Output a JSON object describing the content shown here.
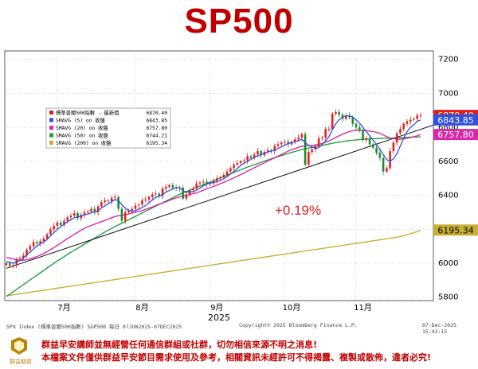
{
  "title": "SP500",
  "footer": {
    "source": "SPX Index (標準普爾500指數) S&P500 每日 07JUN2025-07DEC2025",
    "copyright": "Copyright© 2025 Bloomberg Finance L.P.",
    "date": "07-Dec-2025 15:43:15",
    "logo_text": "群益期貨",
    "disclaimer_1": "群益早安講師並無經營任何通信群組或社群，切勿相信來源不明之消息!",
    "disclaimer_2": "本檔案文件僅供群益早安節目需求使用及參考，相關資訊未經許可不得揭露、複製或散佈，違者必究!"
  },
  "chart_data": {
    "type": "candlestick",
    "xlabel": "2025",
    "ylabel": "",
    "ylim": [
      5780,
      7250
    ],
    "yticks": [
      "7200",
      "7000",
      "6800",
      "6600",
      "6400",
      "6200",
      "6000",
      "5800"
    ],
    "month_labels": [
      {
        "label": "7月",
        "day": 17
      },
      {
        "label": "8月",
        "day": 40
      },
      {
        "label": "9月",
        "day": 62
      },
      {
        "label": "10月",
        "day": 84
      },
      {
        "label": "11月",
        "day": 105
      }
    ],
    "annotation": "+0.19%",
    "price_tags": [
      {
        "text": "6870.40",
        "value": 6870.4,
        "bg": "#e0201c",
        "fg": "#ffffff"
      },
      {
        "text": "6843.85",
        "value": 6843.85,
        "bg": "#3050e0",
        "fg": "#ffffff"
      },
      {
        "text": "6757.80",
        "value": 6757.8,
        "bg": "#d82aa8",
        "fg": "#ffffff"
      },
      {
        "text": "6195.34",
        "value": 6195.34,
        "bg": "#c8b030",
        "fg": "#000000"
      }
    ],
    "legend": [
      {
        "name": "標準普爾500指數 - 最新價",
        "value": "6870.40",
        "color": "#e0201c"
      },
      {
        "name": "SMAVG (5)  on 收盤",
        "value": "6843.85",
        "color": "#3050e0"
      },
      {
        "name": "SMAVG (20)  on 收盤",
        "value": "6757.80",
        "color": "#d82aa8"
      },
      {
        "name": "SMAVG (50)  on 收盤",
        "value": "6744.21",
        "color": "#22a040"
      },
      {
        "name": "SMAVG (200)  on 收盤",
        "value": "6195.34",
        "color": "#c8b030"
      }
    ],
    "closes": [
      6000,
      5985,
      5990,
      6025,
      6030,
      6045,
      6080,
      6100,
      6125,
      6115,
      6130,
      6145,
      6170,
      6200,
      6220,
      6240,
      6225,
      6250,
      6270,
      6280,
      6295,
      6265,
      6285,
      6300,
      6305,
      6320,
      6300,
      6335,
      6360,
      6370,
      6365,
      6385,
      6390,
      6320,
      6250,
      6300,
      6310,
      6320,
      6340,
      6345,
      6370,
      6375,
      6390,
      6405,
      6410,
      6395,
      6440,
      6450,
      6460,
      6445,
      6440,
      6445,
      6380,
      6405,
      6430,
      6440,
      6470,
      6475,
      6480,
      6465,
      6470,
      6485,
      6500,
      6505,
      6520,
      6540,
      6560,
      6580,
      6590,
      6600,
      6605,
      6630,
      6620,
      6640,
      6660,
      6635,
      6655,
      6665,
      6660,
      6690,
      6700,
      6710,
      6715,
      6700,
      6715,
      6730,
      6740,
      6760,
      6580,
      6655,
      6670,
      6690,
      6735,
      6740,
      6790,
      6790,
      6880,
      6890,
      6875,
      6850,
      6870,
      6860,
      6820,
      6800,
      6780,
      6725,
      6735,
      6700,
      6680,
      6650,
      6620,
      6540,
      6560,
      6660,
      6710,
      6765,
      6790,
      6820,
      6835,
      6845,
      6850,
      6870,
      6870
    ],
    "sma5": [
      6010,
      6005,
      6000,
      6008,
      6015,
      6030,
      6050,
      6065,
      6085,
      6100,
      6115,
      6125,
      6140,
      6160,
      6180,
      6200,
      6215,
      6230,
      6245,
      6255,
      6268,
      6272,
      6278,
      6285,
      6290,
      6298,
      6300,
      6310,
      6325,
      6338,
      6350,
      6362,
      6375,
      6368,
      6345,
      6325,
      6312,
      6305,
      6310,
      6318,
      6328,
      6340,
      6356,
      6372,
      6388,
      6395,
      6405,
      6418,
      6428,
      6438,
      6445,
      6445,
      6428,
      6418,
      6420,
      6422,
      6430,
      6442,
      6455,
      6467,
      6472,
      6475,
      6480,
      6488,
      6497,
      6510,
      6525,
      6540,
      6558,
      6575,
      6590,
      6600,
      6612,
      6622,
      6632,
      6640,
      6648,
      6655,
      6660,
      6665,
      6675,
      6685,
      6695,
      6705,
      6710,
      6715,
      6722,
      6730,
      6710,
      6695,
      6685,
      6675,
      6680,
      6700,
      6720,
      6745,
      6785,
      6820,
      6845,
      6858,
      6868,
      6868,
      6860,
      6845,
      6825,
      6800,
      6775,
      6750,
      6725,
      6700,
      6670,
      6640,
      6610,
      6600,
      6615,
      6645,
      6690,
      6735,
      6775,
      6800,
      6815,
      6835,
      6844
    ],
    "sma20": [
      6035,
      6030,
      6025,
      6020,
      6018,
      6018,
      6020,
      6025,
      6032,
      6040,
      6048,
      6058,
      6068,
      6080,
      6092,
      6105,
      6118,
      6132,
      6145,
      6158,
      6170,
      6182,
      6195,
      6205,
      6215,
      6222,
      6230,
      6238,
      6245,
      6252,
      6260,
      6268,
      6275,
      6280,
      6282,
      6285,
      6290,
      6295,
      6300,
      6305,
      6310,
      6318,
      6325,
      6332,
      6340,
      6348,
      6355,
      6362,
      6370,
      6378,
      6385,
      6390,
      6395,
      6400,
      6405,
      6410,
      6415,
      6422,
      6430,
      6438,
      6445,
      6452,
      6460,
      6468,
      6476,
      6485,
      6494,
      6503,
      6512,
      6522,
      6532,
      6542,
      6552,
      6562,
      6572,
      6582,
      6592,
      6602,
      6612,
      6620,
      6630,
      6640,
      6650,
      6660,
      6668,
      6675,
      6682,
      6688,
      6690,
      6692,
      6694,
      6696,
      6700,
      6705,
      6712,
      6720,
      6730,
      6740,
      6750,
      6760,
      6768,
      6775,
      6780,
      6782,
      6783,
      6782,
      6780,
      6778,
      6775,
      6770,
      6765,
      6755,
      6745,
      6738,
      6733,
      6730,
      6730,
      6732,
      6736,
      6740,
      6745,
      6750,
      6758
    ],
    "sma50": [
      5805,
      5818,
      5832,
      5846,
      5860,
      5874,
      5888,
      5902,
      5916,
      5930,
      5944,
      5958,
      5972,
      5986,
      6000,
      6013,
      6026,
      6039,
      6052,
      6064,
      6076,
      6088,
      6100,
      6112,
      6124,
      6136,
      6148,
      6160,
      6172,
      6183,
      6194,
      6205,
      6216,
      6226,
      6236,
      6246,
      6256,
      6266,
      6276,
      6286,
      6296,
      6306,
      6316,
      6326,
      6336,
      6346,
      6356,
      6366,
      6376,
      6386,
      6396,
      6406,
      6414,
      6422,
      6430,
      6438,
      6446,
      6454,
      6462,
      6470,
      6478,
      6486,
      6494,
      6502,
      6510,
      6518,
      6526,
      6534,
      6542,
      6550,
      6558,
      6566,
      6573,
      6580,
      6587,
      6594,
      6601,
      6608,
      6615,
      6622,
      6628,
      6634,
      6640,
      6646,
      6652,
      6658,
      6664,
      6670,
      6674,
      6678,
      6682,
      6686,
      6690,
      6694,
      6698,
      6702,
      6706,
      6710,
      6713,
      6716,
      6719,
      6722,
      6724,
      6726,
      6728,
      6730,
      6731,
      6732,
      6733,
      6734,
      6735,
      6736,
      6736,
      6736,
      6737,
      6738,
      6739,
      6740,
      6741,
      6742,
      6743,
      6743,
      6744
    ],
    "sma200": [
      5808,
      5811,
      5814,
      5817,
      5820,
      5823,
      5826,
      5829,
      5832,
      5835,
      5838,
      5841,
      5844,
      5847,
      5850,
      5853,
      5856,
      5859,
      5862,
      5865,
      5868,
      5871,
      5874,
      5877,
      5880,
      5883,
      5886,
      5889,
      5892,
      5895,
      5898,
      5901,
      5904,
      5907,
      5910,
      5913,
      5916,
      5919,
      5922,
      5925,
      5928,
      5931,
      5934,
      5937,
      5940,
      5943,
      5946,
      5949,
      5952,
      5955,
      5958,
      5961,
      5964,
      5967,
      5970,
      5973,
      5976,
      5979,
      5982,
      5985,
      5988,
      5991,
      5994,
      5997,
      6000,
      6003,
      6006,
      6009,
      6012,
      6015,
      6018,
      6021,
      6024,
      6027,
      6030,
      6033,
      6036,
      6039,
      6042,
      6045,
      6048,
      6051,
      6054,
      6057,
      6060,
      6063,
      6066,
      6069,
      6072,
      6075,
      6078,
      6081,
      6084,
      6087,
      6090,
      6093,
      6096,
      6099,
      6102,
      6105,
      6108,
      6111,
      6114,
      6117,
      6120,
      6123,
      6126,
      6129,
      6132,
      6135,
      6138,
      6141,
      6144,
      6147,
      6150,
      6153,
      6157,
      6162,
      6168,
      6174,
      6180,
      6187,
      6195
    ],
    "trendline": {
      "x": [
        0,
        131
      ],
      "y": [
        5970,
        6830
      ]
    }
  }
}
